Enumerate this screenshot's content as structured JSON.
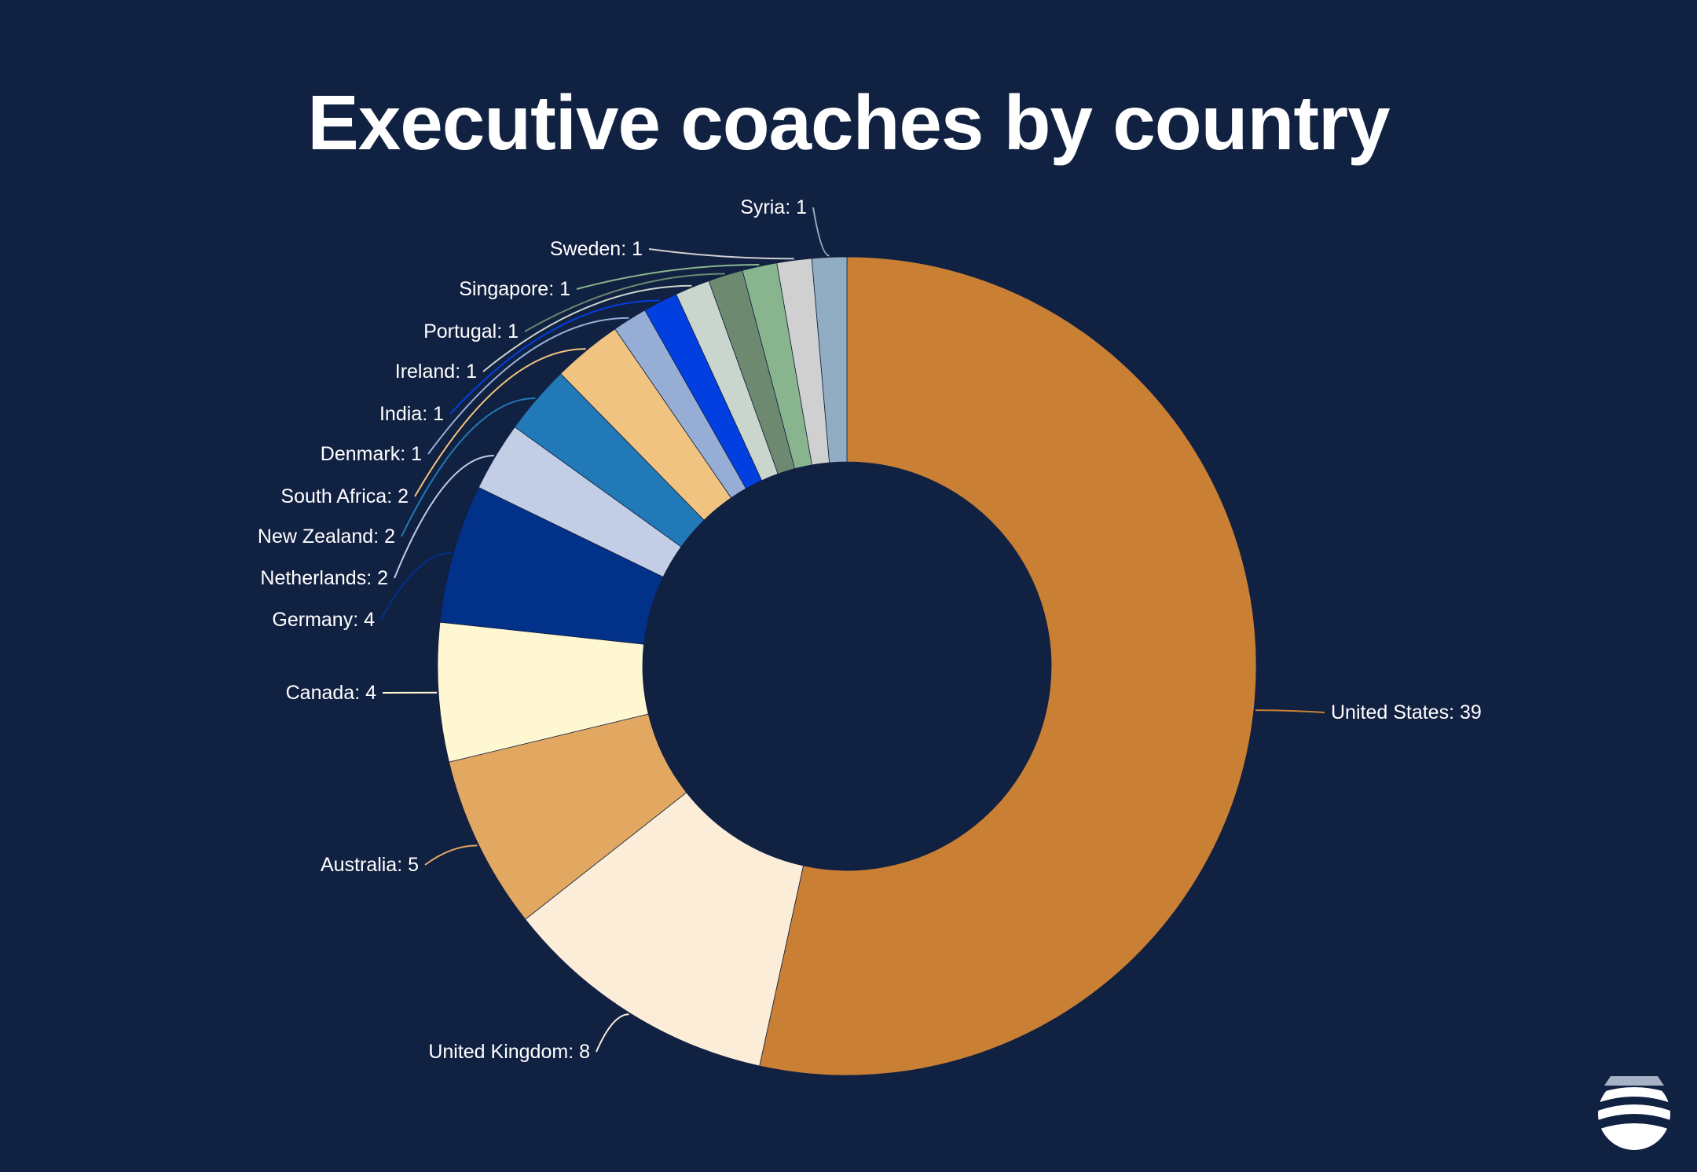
{
  "chart_data": {
    "type": "pie",
    "title": "Executive coaches by country",
    "donut": true,
    "categories": [
      "United States",
      "United Kingdom",
      "Australia",
      "Canada",
      "Germany",
      "Netherlands",
      "New Zealand",
      "South Africa",
      "Denmark",
      "India",
      "Ireland",
      "Portugal",
      "Singapore",
      "Sweden",
      "Syria"
    ],
    "values": [
      39,
      8,
      5,
      4,
      4,
      2,
      2,
      2,
      1,
      1,
      1,
      1,
      1,
      1,
      1
    ],
    "colors": [
      "#C97F34",
      "#FCEDD9",
      "#E2A862",
      "#FEF7D1",
      "#02318A",
      "#C2CEE6",
      "#2279B7",
      "#F1C380",
      "#96AED6",
      "#023FE0",
      "#CAD5CD",
      "#6D8A70",
      "#89B58E",
      "#D0D0D0",
      "#90ADC4"
    ],
    "label_format": "{name}: {value}"
  },
  "labels": [
    "United States: 39",
    "United Kingdom: 8",
    "Australia: 5",
    "Canada: 4",
    "Germany: 4",
    "Netherlands: 2",
    "New Zealand: 2",
    "South Africa: 2",
    "Denmark: 1",
    "India: 1",
    "Ireland: 1",
    "Portugal: 1",
    "Singapore: 1",
    "Sweden: 1",
    "Syria: 1"
  ],
  "logo": {
    "icon": "waves-emblem-icon"
  },
  "colors": {
    "background": "#112142",
    "text": "#FFFFFF"
  }
}
